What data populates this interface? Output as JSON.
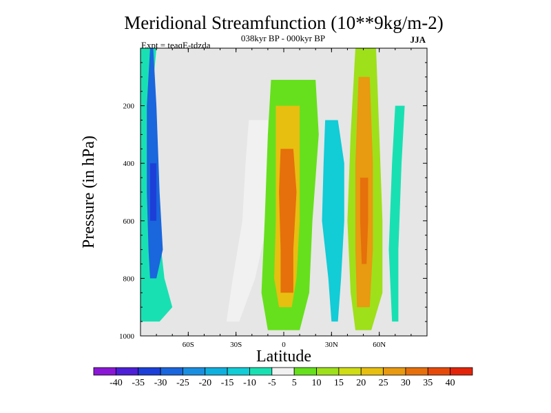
{
  "chart_data": {
    "type": "heatmap",
    "title": "Meridional Streamfunction (10**9kg/m-2)",
    "subtitle": "038kyr BP - 000kyr BP",
    "experiment": "Expt = teaqE-tdzda",
    "season": "JJA",
    "xlabel": "Latitude",
    "ylabel": "Pressure (in hPa)",
    "xlim": [
      -90,
      90
    ],
    "ylim": [
      1000,
      0
    ],
    "x_ticks": [
      {
        "value": -60,
        "label": "60S"
      },
      {
        "value": -30,
        "label": "30S"
      },
      {
        "value": 0,
        "label": "0"
      },
      {
        "value": 30,
        "label": "30N"
      },
      {
        "value": 60,
        "label": "60N"
      }
    ],
    "y_ticks": [
      {
        "value": 200,
        "label": "200"
      },
      {
        "value": 400,
        "label": "400"
      },
      {
        "value": 600,
        "label": "600"
      },
      {
        "value": 800,
        "label": "800"
      },
      {
        "value": 1000,
        "label": "1000"
      }
    ],
    "missing_color": "#e6e6e6",
    "colorbar": {
      "levels": [
        -40,
        -35,
        -30,
        -25,
        -20,
        -15,
        -10,
        -5,
        5,
        10,
        15,
        20,
        25,
        30,
        35,
        40
      ],
      "labels": [
        "-40",
        "-35",
        "-30",
        "-25",
        "-20",
        "-15",
        "-10",
        "-5",
        "5",
        "10",
        "15",
        "20",
        "25",
        "30",
        "35",
        "40"
      ],
      "colors": [
        "#8a17d6",
        "#4d1fd6",
        "#1c3fd8",
        "#1a66dd",
        "#1a8fe0",
        "#10b0de",
        "#12ccd6",
        "#19e0b2",
        "#f1f1f1",
        "#66e01c",
        "#9ee01a",
        "#cfdc16",
        "#e7bf10",
        "#e89a10",
        "#e6700c",
        "#e64a0a",
        "#e2240a"
      ]
    },
    "features": [
      {
        "name": "southern-polar-cell-outer",
        "value": -9,
        "lat_bounds": [
          [
            -90,
            -80
          ],
          [
            -90,
            -85
          ],
          [
            -90,
            -75
          ],
          [
            -90,
            -70
          ],
          [
            -90,
            -78
          ]
        ],
        "levels": [
          0,
          300,
          800,
          900,
          950
        ]
      },
      {
        "name": "southern-polar-cell-inner",
        "value": -26,
        "lat_bounds": [
          [
            -84,
            -82
          ],
          [
            -86,
            -80
          ],
          [
            -86,
            -78
          ],
          [
            -85,
            -76
          ],
          [
            -84,
            -80
          ]
        ],
        "levels": [
          0,
          200,
          500,
          700,
          800
        ]
      },
      {
        "name": "southern-polar-cell-core",
        "value": -32,
        "lat_bounds": [
          [
            -84,
            -80
          ],
          [
            -84,
            -80
          ],
          [
            -84,
            -80
          ]
        ],
        "levels": [
          400,
          500,
          600
        ]
      },
      {
        "name": "tropical-west-band",
        "value": 4,
        "lat_bounds": [
          [
            -22,
            -10
          ],
          [
            -24,
            -8
          ],
          [
            -26,
            -10
          ],
          [
            -32,
            -18
          ],
          [
            -36,
            -28
          ]
        ],
        "levels": [
          250,
          400,
          600,
          800,
          950
        ]
      },
      {
        "name": "hadley-north-outer",
        "value": 9,
        "lat_bounds": [
          [
            -8,
            20
          ],
          [
            -10,
            22
          ],
          [
            -12,
            18
          ],
          [
            -14,
            16
          ],
          [
            -10,
            10
          ]
        ],
        "levels": [
          110,
          300,
          600,
          850,
          980
        ]
      },
      {
        "name": "hadley-north-inner",
        "value": 23,
        "lat_bounds": [
          [
            -5,
            10
          ],
          [
            -5,
            10
          ],
          [
            -5,
            10
          ],
          [
            -6,
            8
          ],
          [
            -3,
            5
          ]
        ],
        "levels": [
          200,
          400,
          600,
          800,
          900
        ]
      },
      {
        "name": "hadley-north-core",
        "value": 33,
        "lat_bounds": [
          [
            -2,
            6
          ],
          [
            -3,
            8
          ],
          [
            -2,
            6
          ],
          [
            -2,
            6
          ]
        ],
        "levels": [
          350,
          500,
          700,
          850
        ]
      },
      {
        "name": "northern-midlat-cell-outer",
        "value": 10,
        "lat_bounds": [
          [
            45,
            58
          ],
          [
            42,
            60
          ],
          [
            40,
            62
          ],
          [
            42,
            62
          ],
          [
            45,
            55
          ]
        ],
        "levels": [
          0,
          300,
          600,
          850,
          980
        ]
      },
      {
        "name": "northern-midlat-cell-inner",
        "value": 27,
        "lat_bounds": [
          [
            47,
            54
          ],
          [
            45,
            56
          ],
          [
            45,
            56
          ],
          [
            46,
            54
          ]
        ],
        "levels": [
          100,
          400,
          700,
          900
        ]
      },
      {
        "name": "northern-midlat-core",
        "value": 34,
        "lat_bounds": [
          [
            48,
            53
          ],
          [
            48,
            53
          ],
          [
            49,
            52
          ]
        ],
        "levels": [
          450,
          600,
          750
        ]
      },
      {
        "name": "subtropical-north-band",
        "value": -12,
        "lat_bounds": [
          [
            26,
            34
          ],
          [
            25,
            38
          ],
          [
            24,
            38
          ],
          [
            28,
            36
          ],
          [
            30,
            34
          ]
        ],
        "levels": [
          250,
          400,
          600,
          800,
          950
        ]
      },
      {
        "name": "high-north-band",
        "value": -9,
        "lat_bounds": [
          [
            70,
            76
          ],
          [
            68,
            74
          ],
          [
            66,
            72
          ],
          [
            68,
            72
          ]
        ],
        "levels": [
          200,
          400,
          700,
          950
        ]
      }
    ]
  }
}
